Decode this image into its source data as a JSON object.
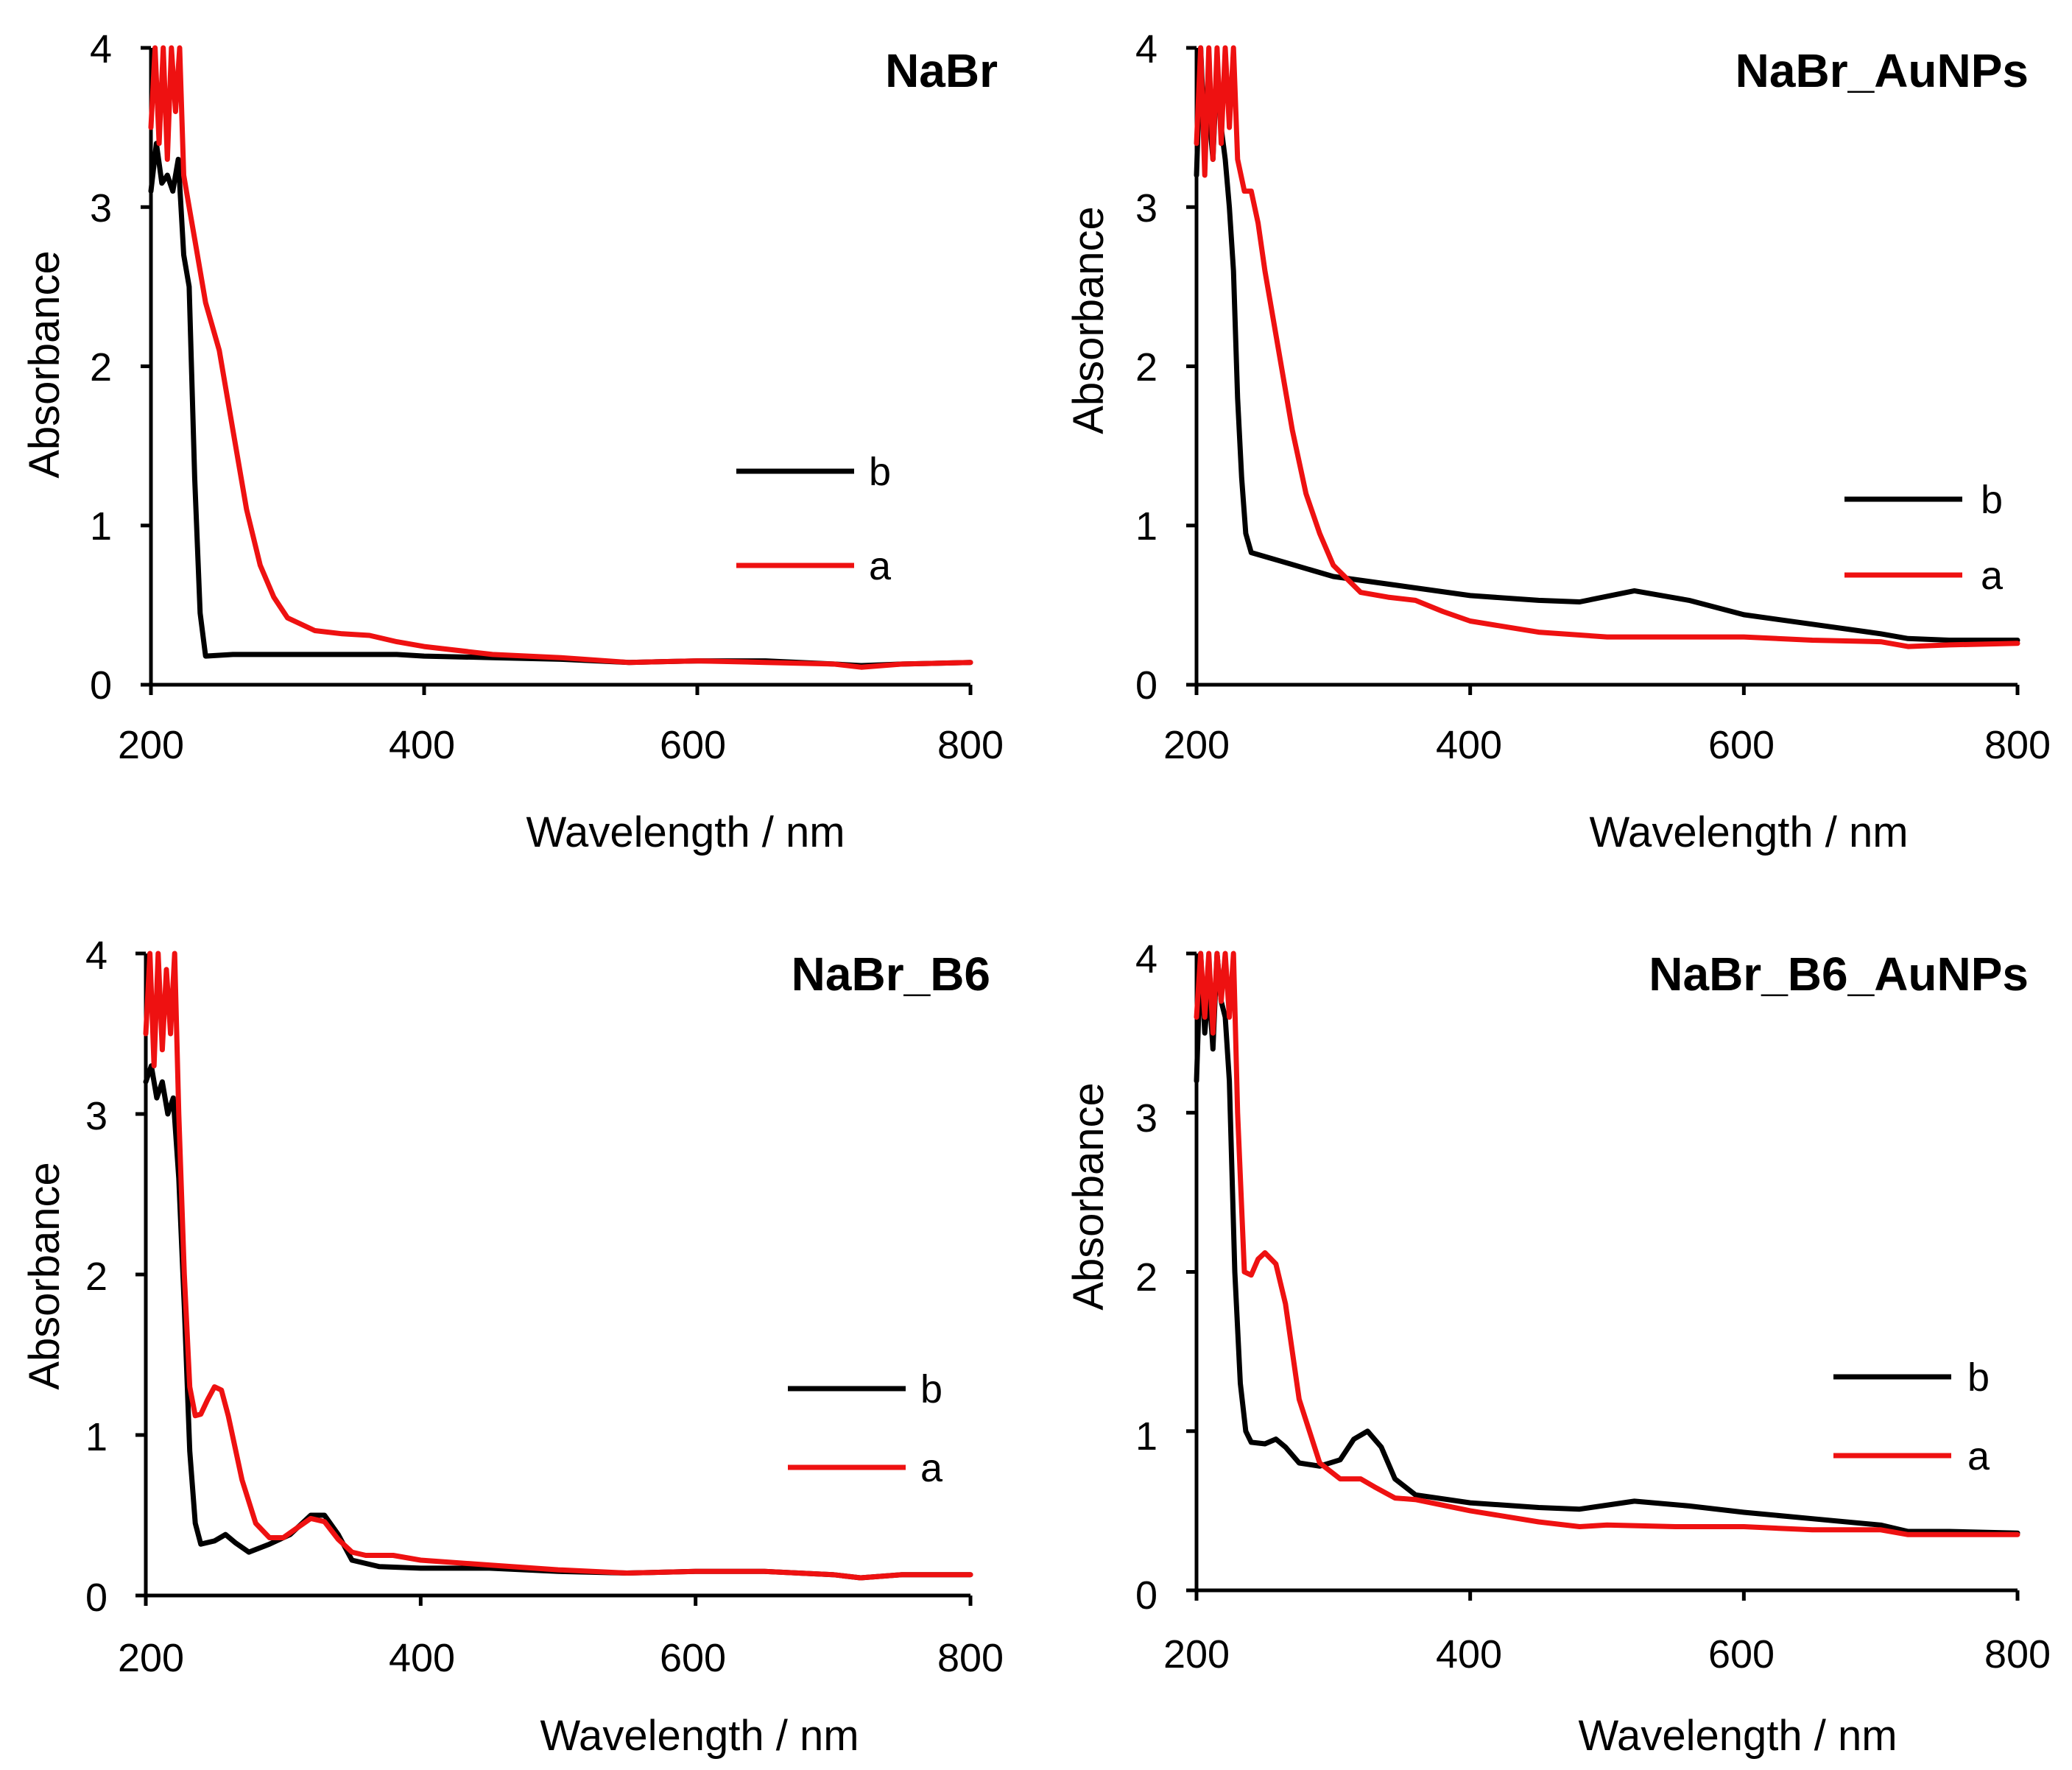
{
  "chart_data": [
    {
      "type": "line",
      "title": "NaBr",
      "xlabel": "Wavelength / nm",
      "ylabel": "Absorbance",
      "xlim": [
        200,
        800
      ],
      "ylim": [
        0,
        4
      ],
      "xticks": [
        "200",
        "400",
        "600",
        "800"
      ],
      "yticks": [
        "0",
        "1",
        "2",
        "3",
        "4"
      ],
      "grid": false,
      "legend_position": "right",
      "series": [
        {
          "name": "b",
          "color": "#000000",
          "x": [
            200,
            204,
            208,
            212,
            216,
            220,
            224,
            228,
            232,
            236,
            240,
            260,
            300,
            350,
            380,
            400,
            450,
            500,
            550,
            600,
            650,
            700,
            720,
            750,
            800
          ],
          "y": [
            3.1,
            3.4,
            3.15,
            3.2,
            3.1,
            3.3,
            2.7,
            2.5,
            1.3,
            0.45,
            0.18,
            0.19,
            0.19,
            0.19,
            0.19,
            0.18,
            0.17,
            0.16,
            0.14,
            0.15,
            0.15,
            0.13,
            0.12,
            0.13,
            0.14
          ]
        },
        {
          "name": "a",
          "color": "#ee1111",
          "x": [
            200,
            203,
            206,
            209,
            212,
            215,
            218,
            221,
            224,
            228,
            232,
            240,
            250,
            260,
            270,
            280,
            290,
            300,
            320,
            340,
            360,
            380,
            400,
            450,
            500,
            550,
            600,
            650,
            700,
            720,
            750,
            800
          ],
          "y": [
            3.5,
            4.0,
            3.4,
            4.0,
            3.3,
            4.0,
            3.6,
            4.0,
            3.2,
            3.0,
            2.8,
            2.4,
            2.1,
            1.6,
            1.1,
            0.75,
            0.55,
            0.42,
            0.34,
            0.32,
            0.31,
            0.27,
            0.24,
            0.19,
            0.17,
            0.14,
            0.15,
            0.14,
            0.13,
            0.11,
            0.13,
            0.14
          ]
        }
      ]
    },
    {
      "type": "line",
      "title": "NaBr_AuNPs",
      "xlabel": "Wavelength / nm",
      "ylabel": "Absorbance",
      "xlim": [
        200,
        800
      ],
      "ylim": [
        0,
        4
      ],
      "xticks": [
        "200",
        "400",
        "600",
        "800"
      ],
      "yticks": [
        "0",
        "1",
        "2",
        "3",
        "4"
      ],
      "grid": false,
      "legend_position": "right",
      "series": [
        {
          "name": "b",
          "color": "#000000",
          "x": [
            200,
            203,
            206,
            209,
            212,
            215,
            218,
            221,
            224,
            227,
            230,
            233,
            236,
            240,
            260,
            300,
            350,
            400,
            450,
            480,
            520,
            560,
            600,
            650,
            700,
            720,
            750,
            800
          ],
          "y": [
            3.2,
            4.0,
            3.4,
            3.6,
            3.3,
            3.9,
            3.5,
            3.3,
            3.0,
            2.6,
            1.8,
            1.3,
            0.95,
            0.83,
            0.78,
            0.68,
            0.62,
            0.56,
            0.53,
            0.52,
            0.59,
            0.53,
            0.44,
            0.38,
            0.32,
            0.29,
            0.28,
            0.28
          ]
        },
        {
          "name": "a",
          "color": "#ee1111",
          "x": [
            200,
            203,
            206,
            209,
            212,
            215,
            218,
            221,
            224,
            227,
            230,
            235,
            240,
            245,
            250,
            260,
            270,
            280,
            290,
            300,
            320,
            340,
            360,
            380,
            400,
            450,
            500,
            550,
            600,
            650,
            700,
            720,
            750,
            800
          ],
          "y": [
            3.4,
            4.0,
            3.2,
            4.0,
            3.3,
            4.0,
            3.4,
            4.0,
            3.5,
            4.0,
            3.3,
            3.1,
            3.1,
            2.9,
            2.6,
            2.1,
            1.6,
            1.2,
            0.95,
            0.75,
            0.58,
            0.55,
            0.53,
            0.46,
            0.4,
            0.33,
            0.3,
            0.3,
            0.3,
            0.28,
            0.27,
            0.24,
            0.25,
            0.26
          ]
        }
      ]
    },
    {
      "type": "line",
      "title": "NaBr_B6",
      "xlabel": "Wavelength / nm",
      "ylabel": "Absorbance",
      "xlim": [
        200,
        800
      ],
      "ylim": [
        0,
        4
      ],
      "xticks": [
        "200",
        "400",
        "600",
        "800"
      ],
      "yticks": [
        "0",
        "1",
        "2",
        "3",
        "4"
      ],
      "grid": false,
      "legend_position": "right",
      "series": [
        {
          "name": "b",
          "color": "#000000",
          "x": [
            200,
            204,
            208,
            212,
            216,
            220,
            224,
            228,
            232,
            236,
            240,
            250,
            258,
            265,
            275,
            290,
            305,
            320,
            330,
            340,
            350,
            370,
            400,
            450,
            500,
            550,
            600,
            650,
            700,
            720,
            750,
            800
          ],
          "y": [
            3.2,
            3.3,
            3.1,
            3.2,
            3.0,
            3.1,
            2.6,
            1.8,
            0.9,
            0.45,
            0.32,
            0.34,
            0.38,
            0.33,
            0.27,
            0.32,
            0.38,
            0.5,
            0.5,
            0.38,
            0.22,
            0.18,
            0.17,
            0.17,
            0.15,
            0.14,
            0.15,
            0.15,
            0.13,
            0.11,
            0.13,
            0.13
          ]
        },
        {
          "name": "a",
          "color": "#ee1111",
          "x": [
            200,
            203,
            206,
            209,
            212,
            215,
            218,
            221,
            224,
            228,
            232,
            236,
            240,
            245,
            250,
            255,
            260,
            270,
            280,
            290,
            300,
            310,
            320,
            330,
            340,
            350,
            360,
            380,
            400,
            450,
            500,
            550,
            600,
            650,
            700,
            720,
            750,
            800
          ],
          "y": [
            3.5,
            4.0,
            3.3,
            4.0,
            3.4,
            3.9,
            3.5,
            4.0,
            3.0,
            2.0,
            1.3,
            1.12,
            1.13,
            1.22,
            1.3,
            1.28,
            1.12,
            0.72,
            0.45,
            0.36,
            0.36,
            0.42,
            0.48,
            0.46,
            0.35,
            0.27,
            0.25,
            0.25,
            0.22,
            0.19,
            0.16,
            0.14,
            0.15,
            0.15,
            0.13,
            0.11,
            0.13,
            0.13
          ]
        }
      ]
    },
    {
      "type": "line",
      "title": "NaBr_B6_AuNPs",
      "xlabel": "Wavelength / nm",
      "ylabel": "Absorbance",
      "xlim": [
        200,
        800
      ],
      "ylim": [
        0,
        4
      ],
      "xticks": [
        "200",
        "400",
        "600",
        "800"
      ],
      "yticks": [
        "0",
        "1",
        "2",
        "3",
        "4"
      ],
      "grid": false,
      "legend_position": "right",
      "series": [
        {
          "name": "b",
          "color": "#000000",
          "x": [
            200,
            203,
            206,
            209,
            212,
            215,
            218,
            221,
            224,
            228,
            232,
            236,
            240,
            250,
            258,
            265,
            275,
            290,
            305,
            315,
            325,
            335,
            345,
            360,
            400,
            450,
            480,
            520,
            560,
            600,
            650,
            700,
            720,
            750,
            800
          ],
          "y": [
            3.2,
            4.0,
            3.5,
            3.8,
            3.4,
            4.0,
            3.7,
            3.6,
            3.2,
            2.0,
            1.3,
            1.0,
            0.93,
            0.92,
            0.95,
            0.9,
            0.8,
            0.78,
            0.82,
            0.95,
            1.0,
            0.9,
            0.7,
            0.6,
            0.55,
            0.52,
            0.51,
            0.56,
            0.53,
            0.49,
            0.45,
            0.41,
            0.37,
            0.37,
            0.36
          ]
        },
        {
          "name": "a",
          "color": "#ee1111",
          "x": [
            200,
            203,
            206,
            209,
            212,
            215,
            218,
            221,
            224,
            227,
            230,
            235,
            240,
            245,
            250,
            258,
            265,
            275,
            290,
            305,
            320,
            330,
            345,
            360,
            400,
            450,
            480,
            500,
            550,
            600,
            650,
            700,
            720,
            750,
            800
          ],
          "y": [
            3.6,
            4.0,
            3.6,
            4.0,
            3.5,
            4.0,
            3.7,
            4.0,
            3.6,
            4.0,
            3.0,
            2.0,
            1.98,
            2.08,
            2.12,
            2.05,
            1.8,
            1.2,
            0.8,
            0.7,
            0.7,
            0.65,
            0.58,
            0.57,
            0.5,
            0.43,
            0.4,
            0.41,
            0.4,
            0.4,
            0.38,
            0.38,
            0.35,
            0.35,
            0.35
          ]
        }
      ]
    }
  ]
}
